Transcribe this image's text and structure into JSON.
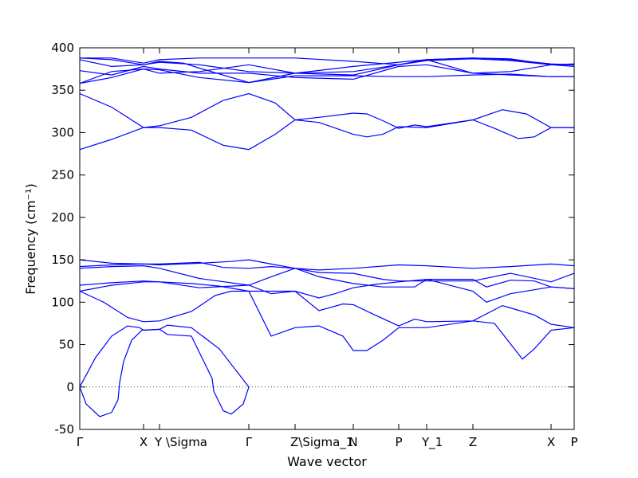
{
  "chart_data": {
    "type": "line",
    "title": "",
    "xlabel": "Wave vector",
    "ylabel": "Frequency (cm⁻¹)",
    "ylim": [
      -50,
      400
    ],
    "xlim": [
      0,
      620
    ],
    "yticks": [
      -50,
      0,
      50,
      100,
      150,
      200,
      250,
      300,
      350,
      400
    ],
    "grid": false,
    "zero_line": true,
    "line_color": "#0000ff",
    "kpoints": [
      {
        "label": "Γ",
        "x": 0
      },
      {
        "label": "X",
        "x": 80
      },
      {
        "label": "Y \\Sigma",
        "x": 100
      },
      {
        "label": "Γ",
        "x": 212
      },
      {
        "label": "Z\\Sigma_1",
        "x": 270
      },
      {
        "label": "N",
        "x": 343
      },
      {
        "label": "P",
        "x": 400
      },
      {
        "label": "Y_1",
        "x": 435
      },
      {
        "label": "Z",
        "x": 493
      },
      {
        "label": "X",
        "x": 591
      },
      {
        "label": "P",
        "x": 620
      }
    ],
    "series": [
      {
        "values": [
          [
            0,
            0
          ],
          [
            8,
            -20
          ],
          [
            25,
            -35
          ],
          [
            40,
            -30
          ],
          [
            48,
            -15
          ],
          [
            50,
            5
          ],
          [
            55,
            30
          ],
          [
            65,
            55
          ],
          [
            78,
            67
          ],
          [
            100,
            68
          ],
          [
            110,
            62
          ],
          [
            140,
            60
          ],
          [
            166,
            10
          ],
          [
            168,
            -5
          ],
          [
            180,
            -28
          ],
          [
            190,
            -32
          ],
          [
            205,
            -20
          ],
          [
            212,
            0
          ]
        ]
      },
      {
        "values": [
          [
            0,
            0
          ],
          [
            20,
            35
          ],
          [
            40,
            60
          ],
          [
            60,
            72
          ],
          [
            75,
            70
          ],
          [
            80,
            67
          ],
          [
            100,
            68
          ],
          [
            110,
            73
          ],
          [
            140,
            70
          ],
          [
            175,
            45
          ],
          [
            212,
            0
          ]
        ]
      },
      {
        "values": [
          [
            0,
            113
          ],
          [
            30,
            100
          ],
          [
            60,
            82
          ],
          [
            80,
            77
          ],
          [
            100,
            78
          ],
          [
            140,
            89
          ],
          [
            170,
            108
          ],
          [
            190,
            113
          ],
          [
            212,
            113
          ],
          [
            240,
            60
          ],
          [
            270,
            70
          ],
          [
            300,
            72
          ],
          [
            330,
            60
          ],
          [
            343,
            43
          ],
          [
            360,
            43
          ],
          [
            380,
            55
          ],
          [
            400,
            70
          ],
          [
            435,
            70
          ],
          [
            493,
            78
          ],
          [
            520,
            75
          ],
          [
            545,
            45
          ],
          [
            555,
            33
          ],
          [
            570,
            45
          ],
          [
            591,
            67
          ],
          [
            620,
            70
          ]
        ]
      },
      {
        "values": [
          [
            0,
            113
          ],
          [
            40,
            120
          ],
          [
            80,
            124
          ],
          [
            100,
            124
          ],
          [
            140,
            122
          ],
          [
            175,
            119
          ],
          [
            212,
            113
          ],
          [
            270,
            113
          ],
          [
            300,
            90
          ],
          [
            330,
            98
          ],
          [
            343,
            97
          ],
          [
            370,
            85
          ],
          [
            400,
            72
          ],
          [
            420,
            80
          ],
          [
            435,
            77
          ],
          [
            493,
            78
          ],
          [
            530,
            96
          ],
          [
            570,
            85
          ],
          [
            591,
            74
          ],
          [
            620,
            70
          ]
        ]
      },
      {
        "values": [
          [
            0,
            120
          ],
          [
            40,
            123
          ],
          [
            80,
            125
          ],
          [
            100,
            124
          ],
          [
            150,
            117
          ],
          [
            212,
            120
          ],
          [
            240,
            130
          ],
          [
            270,
            140
          ],
          [
            300,
            130
          ],
          [
            343,
            122
          ],
          [
            380,
            118
          ],
          [
            420,
            118
          ],
          [
            435,
            127
          ],
          [
            493,
            127
          ],
          [
            510,
            118
          ],
          [
            540,
            126
          ],
          [
            570,
            125
          ],
          [
            591,
            118
          ],
          [
            620,
            116
          ]
        ]
      },
      {
        "values": [
          [
            0,
            140
          ],
          [
            40,
            142
          ],
          [
            80,
            143
          ],
          [
            100,
            140
          ],
          [
            150,
            128
          ],
          [
            212,
            120
          ],
          [
            240,
            110
          ],
          [
            270,
            113
          ],
          [
            300,
            105
          ],
          [
            320,
            110
          ],
          [
            343,
            117
          ],
          [
            370,
            121
          ],
          [
            400,
            124
          ],
          [
            435,
            127
          ],
          [
            493,
            113
          ],
          [
            510,
            100
          ],
          [
            540,
            110
          ],
          [
            591,
            118
          ],
          [
            620,
            116
          ]
        ]
      },
      {
        "values": [
          [
            0,
            150
          ],
          [
            40,
            146
          ],
          [
            80,
            145
          ],
          [
            100,
            145
          ],
          [
            150,
            147
          ],
          [
            180,
            141
          ],
          [
            212,
            140
          ],
          [
            240,
            142
          ],
          [
            270,
            140
          ],
          [
            300,
            135
          ],
          [
            343,
            134
          ],
          [
            380,
            127
          ],
          [
            400,
            125
          ],
          [
            435,
            125
          ],
          [
            493,
            125
          ],
          [
            540,
            134
          ],
          [
            591,
            124
          ],
          [
            620,
            134
          ]
        ]
      },
      {
        "values": [
          [
            0,
            142
          ],
          [
            40,
            144
          ],
          [
            80,
            145
          ],
          [
            100,
            144
          ],
          [
            150,
            146
          ],
          [
            190,
            148
          ],
          [
            212,
            150
          ],
          [
            240,
            145
          ],
          [
            270,
            140
          ],
          [
            300,
            138
          ],
          [
            343,
            140
          ],
          [
            400,
            144
          ],
          [
            435,
            143
          ],
          [
            493,
            140
          ],
          [
            540,
            142
          ],
          [
            591,
            145
          ],
          [
            620,
            143
          ]
        ]
      },
      {
        "values": [
          [
            0,
            280
          ],
          [
            40,
            292
          ],
          [
            80,
            306
          ],
          [
            100,
            306
          ],
          [
            140,
            303
          ],
          [
            180,
            285
          ],
          [
            212,
            280
          ],
          [
            245,
            298
          ],
          [
            270,
            315
          ],
          [
            300,
            312
          ],
          [
            343,
            298
          ],
          [
            360,
            295
          ],
          [
            380,
            298
          ],
          [
            400,
            307
          ],
          [
            435,
            306
          ],
          [
            493,
            315
          ],
          [
            520,
            305
          ],
          [
            550,
            293
          ],
          [
            570,
            295
          ],
          [
            591,
            306
          ],
          [
            620,
            306
          ]
        ]
      },
      {
        "values": [
          [
            0,
            346
          ],
          [
            40,
            330
          ],
          [
            80,
            306
          ],
          [
            100,
            308
          ],
          [
            140,
            318
          ],
          [
            180,
            338
          ],
          [
            212,
            346
          ],
          [
            245,
            335
          ],
          [
            270,
            315
          ],
          [
            300,
            318
          ],
          [
            343,
            323
          ],
          [
            360,
            322
          ],
          [
            380,
            314
          ],
          [
            400,
            305
          ],
          [
            420,
            309
          ],
          [
            435,
            307
          ],
          [
            493,
            315
          ],
          [
            530,
            327
          ],
          [
            560,
            322
          ],
          [
            591,
            306
          ],
          [
            620,
            306
          ]
        ]
      },
      {
        "values": [
          [
            0,
            358
          ],
          [
            40,
            365
          ],
          [
            80,
            375
          ],
          [
            100,
            374
          ],
          [
            150,
            365
          ],
          [
            212,
            359
          ],
          [
            270,
            367
          ],
          [
            343,
            367
          ],
          [
            400,
            366
          ],
          [
            435,
            366
          ],
          [
            493,
            368
          ],
          [
            540,
            369
          ],
          [
            591,
            366
          ],
          [
            620,
            366
          ]
        ]
      },
      {
        "values": [
          [
            0,
            373
          ],
          [
            40,
            368
          ],
          [
            80,
            378
          ],
          [
            100,
            375
          ],
          [
            150,
            370
          ],
          [
            212,
            370
          ],
          [
            270,
            365
          ],
          [
            343,
            363
          ],
          [
            400,
            378
          ],
          [
            435,
            380
          ],
          [
            493,
            370
          ],
          [
            540,
            368
          ],
          [
            591,
            366
          ],
          [
            620,
            366
          ]
        ]
      },
      {
        "values": [
          [
            0,
            386
          ],
          [
            40,
            378
          ],
          [
            80,
            380
          ],
          [
            100,
            383
          ],
          [
            150,
            380
          ],
          [
            212,
            372
          ],
          [
            270,
            370
          ],
          [
            343,
            372
          ],
          [
            400,
            380
          ],
          [
            435,
            385
          ],
          [
            493,
            387
          ],
          [
            540,
            385
          ],
          [
            591,
            380
          ],
          [
            620,
            380
          ]
        ]
      },
      {
        "values": [
          [
            0,
            388
          ],
          [
            40,
            386
          ],
          [
            80,
            380
          ],
          [
            100,
            384
          ],
          [
            130,
            382
          ],
          [
            150,
            376
          ],
          [
            212,
            359
          ],
          [
            270,
            370
          ],
          [
            343,
            378
          ],
          [
            400,
            383
          ],
          [
            435,
            386
          ],
          [
            493,
            388
          ],
          [
            540,
            386
          ],
          [
            591,
            381
          ],
          [
            620,
            380
          ]
        ]
      },
      {
        "values": [
          [
            0,
            388
          ],
          [
            40,
            388
          ],
          [
            80,
            382
          ],
          [
            100,
            386
          ],
          [
            150,
            388
          ],
          [
            212,
            388
          ],
          [
            270,
            388
          ],
          [
            343,
            384
          ],
          [
            400,
            380
          ],
          [
            435,
            386
          ],
          [
            493,
            388
          ],
          [
            540,
            387
          ],
          [
            591,
            380
          ],
          [
            620,
            381
          ]
        ]
      },
      {
        "values": [
          [
            0,
            358
          ],
          [
            40,
            372
          ],
          [
            80,
            375
          ],
          [
            100,
            370
          ],
          [
            150,
            372
          ],
          [
            212,
            380
          ],
          [
            270,
            370
          ],
          [
            343,
            368
          ],
          [
            400,
            380
          ],
          [
            435,
            386
          ],
          [
            493,
            370
          ],
          [
            540,
            372
          ],
          [
            591,
            380
          ],
          [
            620,
            378
          ]
        ]
      }
    ]
  }
}
